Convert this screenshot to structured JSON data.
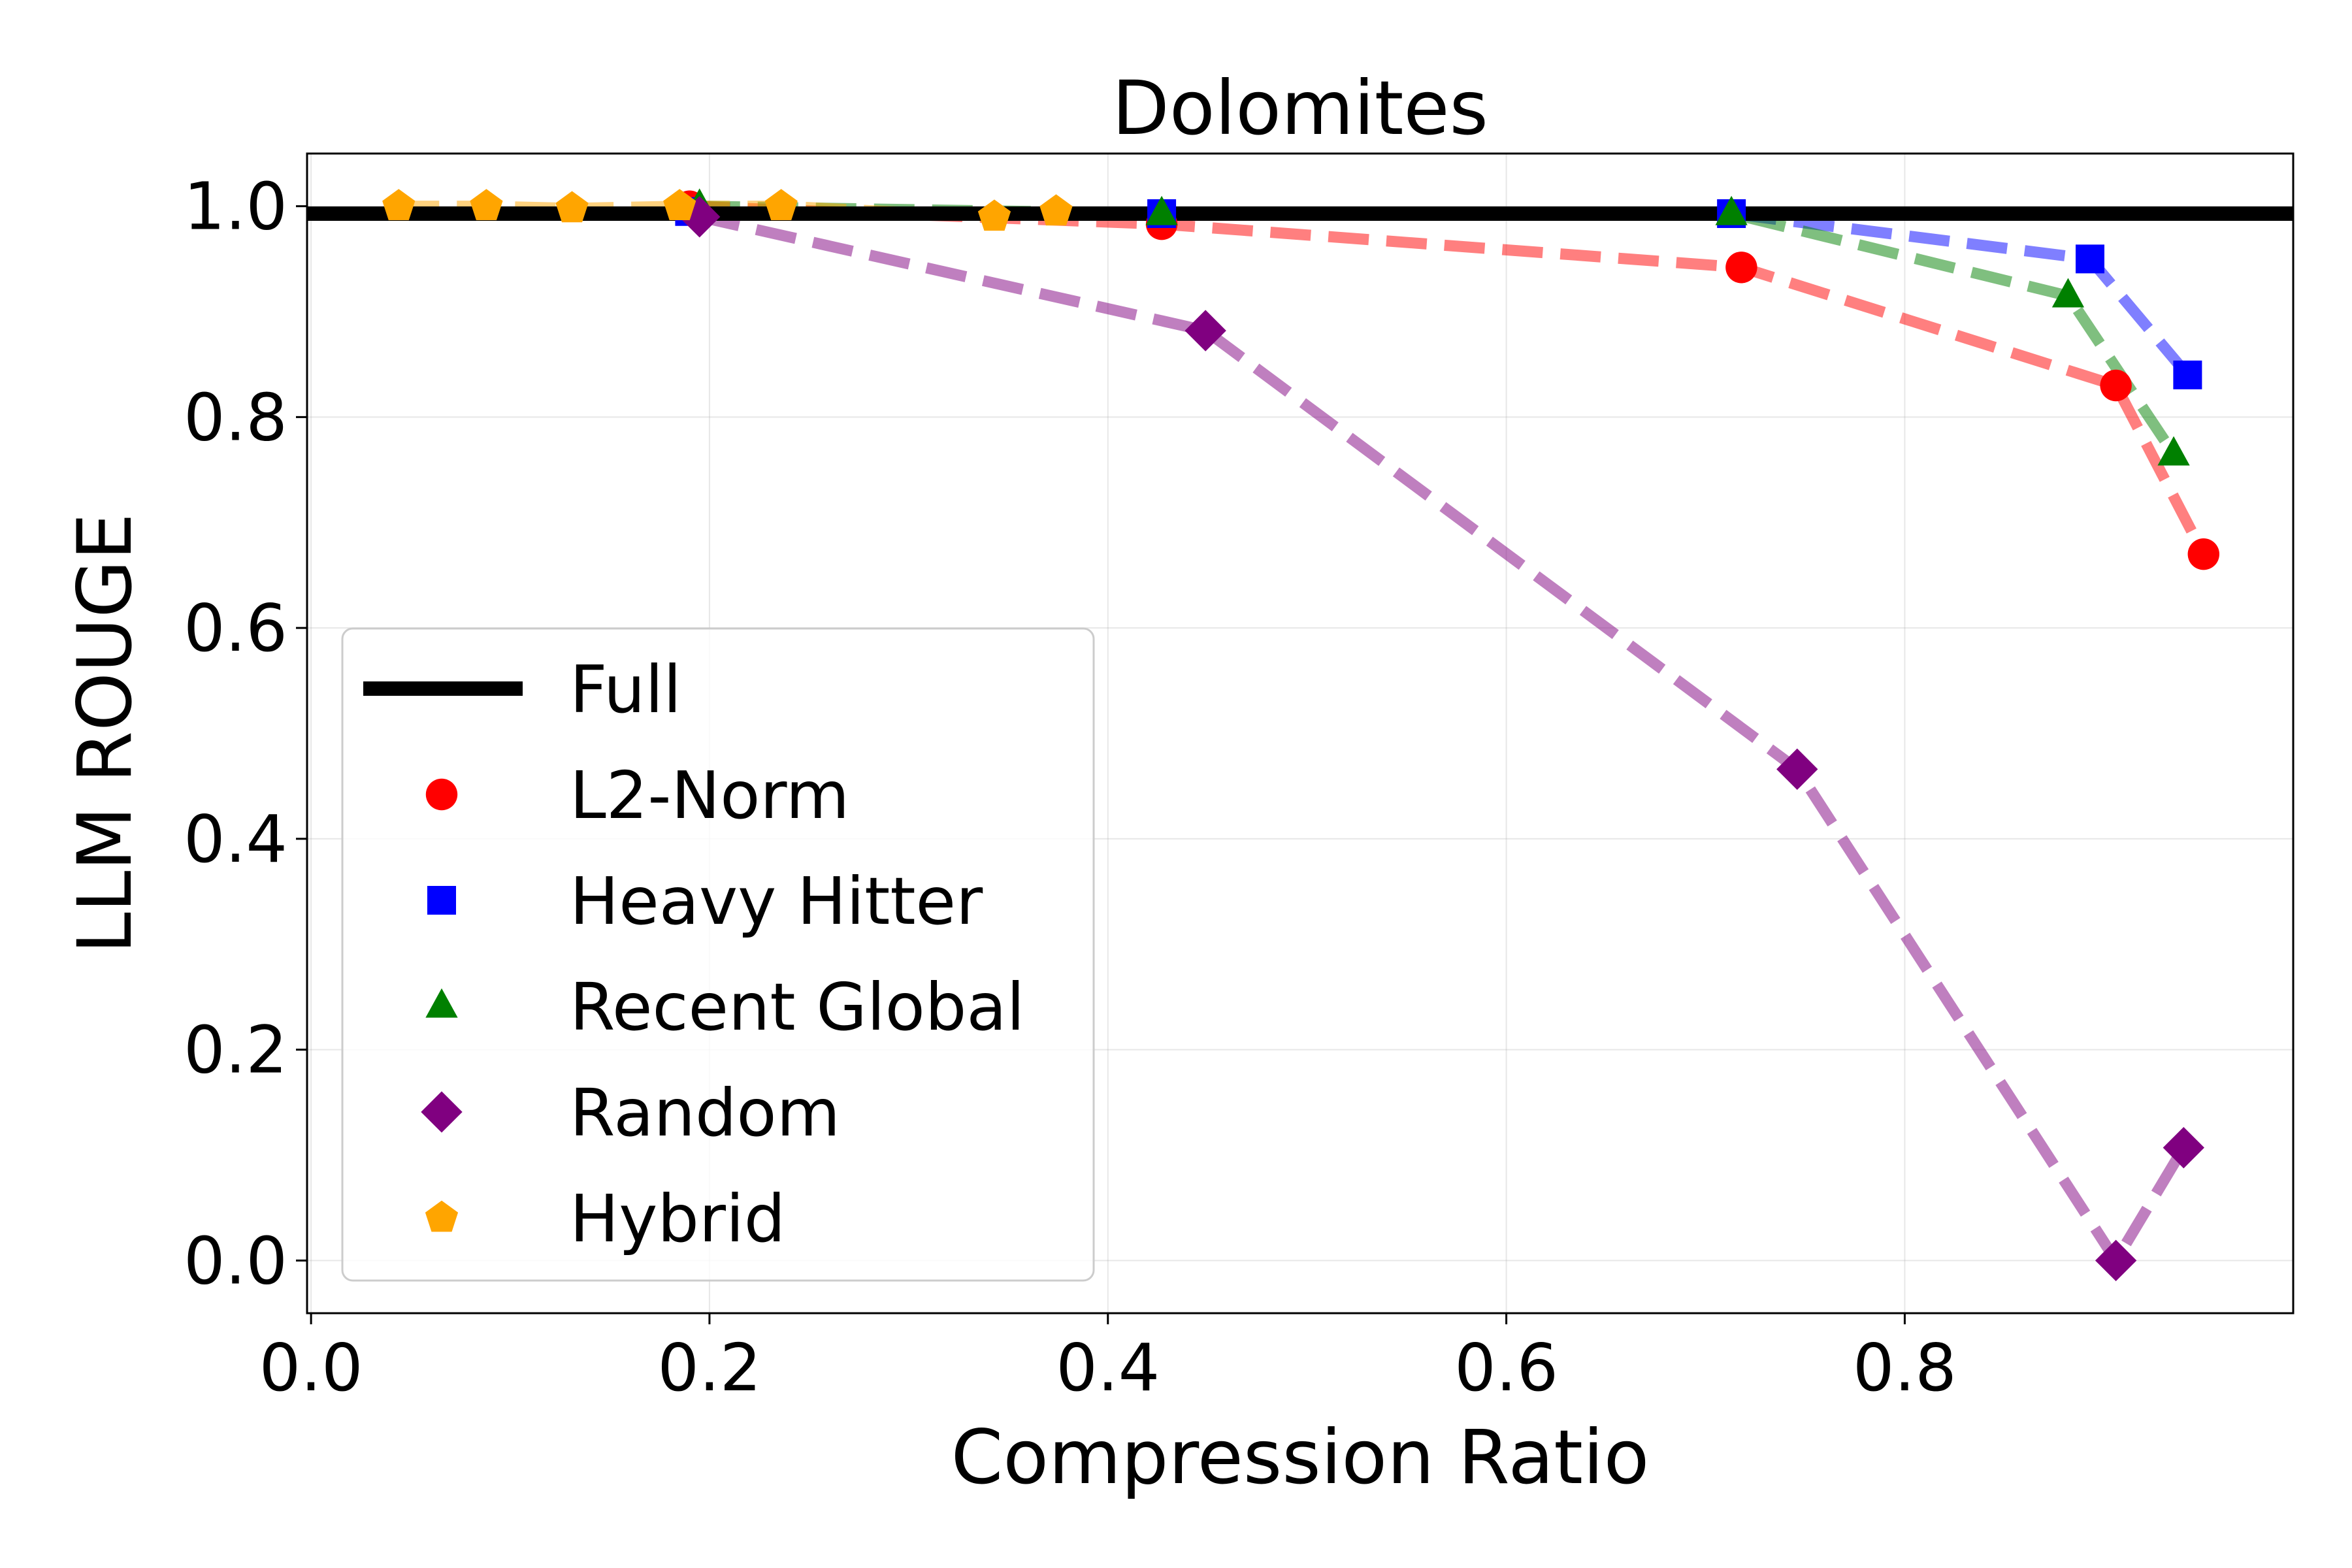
{
  "chart_data": {
    "type": "line",
    "title": "Dolomites",
    "xlabel": "Compression Ratio",
    "ylabel": "LLM ROUGE",
    "xlim": [
      -0.002,
      0.995
    ],
    "ylim": [
      -0.05,
      1.05
    ],
    "x_ticks": [
      0.0,
      0.2,
      0.4,
      0.6,
      0.8
    ],
    "x_tick_labels": [
      "0.0",
      "0.2",
      "0.4",
      "0.6",
      "0.8"
    ],
    "y_ticks": [
      0.0,
      0.2,
      0.4,
      0.6,
      0.8,
      1.0
    ],
    "y_tick_labels": [
      "0.0",
      "0.2",
      "0.4",
      "0.6",
      "0.8",
      "1.0"
    ],
    "grid": true,
    "legend_position": "lower-left",
    "reference_line": {
      "name": "Full",
      "y": 0.993,
      "color": "#000000"
    },
    "series": [
      {
        "name": "L2-Norm",
        "color": "#ff0000",
        "marker": "circle",
        "x": [
          0.19,
          0.427,
          0.718,
          0.906,
          0.95
        ],
        "y": [
          1.0,
          0.983,
          0.942,
          0.83,
          0.67
        ]
      },
      {
        "name": "Heavy Hitter",
        "color": "#0000ff",
        "marker": "square",
        "x": [
          0.19,
          0.427,
          0.713,
          0.893,
          0.942
        ],
        "y": [
          0.995,
          0.993,
          0.993,
          0.95,
          0.84
        ]
      },
      {
        "name": "Recent Global",
        "color": "#008000",
        "marker": "triangle",
        "x": [
          0.195,
          0.427,
          0.713,
          0.882,
          0.935
        ],
        "y": [
          1.0,
          0.993,
          0.993,
          0.915,
          0.765
        ]
      },
      {
        "name": "Random",
        "color": "#800080",
        "marker": "diamond",
        "x": [
          0.195,
          0.449,
          0.746,
          0.906,
          0.94
        ],
        "y": [
          0.99,
          0.882,
          0.466,
          0.0,
          0.107
        ]
      },
      {
        "name": "Hybrid",
        "color": "#ffa500",
        "marker": "pentagon",
        "x": [
          0.044,
          0.088,
          0.131,
          0.185,
          0.236,
          0.343,
          0.374
        ],
        "y": [
          1.0,
          1.0,
          0.998,
          1.0,
          1.0,
          0.99,
          0.995
        ]
      }
    ]
  }
}
